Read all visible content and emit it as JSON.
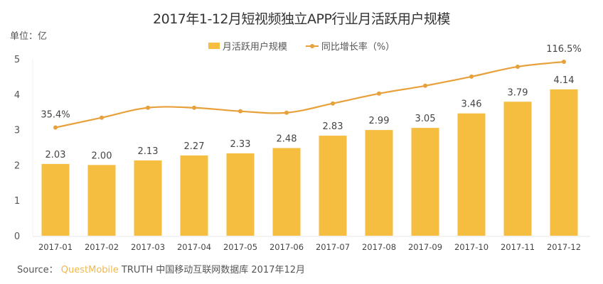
{
  "chart_data": {
    "type": "bar",
    "title": "2017年1-12月短视频独立APP行业月活跃用户规模",
    "unit_label": "单位：亿",
    "categories": [
      "2017-01",
      "2017-02",
      "2017-03",
      "2017-04",
      "2017-05",
      "2017-06",
      "2017-07",
      "2017-08",
      "2017-09",
      "2017-10",
      "2017-11",
      "2017-12"
    ],
    "series": [
      {
        "name": "月活跃用户规模",
        "type": "bar",
        "color": "#F5BE41",
        "values": [
          2.03,
          2.0,
          2.13,
          2.27,
          2.33,
          2.48,
          2.83,
          2.99,
          3.05,
          3.46,
          3.79,
          4.14
        ],
        "labels": [
          "2.03",
          "2.00",
          "2.13",
          "2.27",
          "2.33",
          "2.48",
          "2.83",
          "2.99",
          "3.05",
          "3.46",
          "3.79",
          "4.14"
        ]
      },
      {
        "name": "同比增长率（%）",
        "type": "line",
        "color": "#E8A03A",
        "axis": "secondary",
        "values": [
          35.4,
          47.6,
          59.8,
          59.8,
          55.5,
          53.7,
          65.1,
          77.3,
          86.9,
          98.2,
          110.4,
          116.5
        ],
        "labels": [
          "35.4%",
          "",
          "",
          "",
          "",
          "",
          "",
          "",
          "",
          "",
          "",
          "116.5%"
        ]
      }
    ],
    "ylim": [
      0,
      5
    ],
    "yticks": [
      "0",
      "1",
      "2",
      "3",
      "4",
      "5"
    ],
    "y2lim": [
      -98,
      120
    ],
    "y2_axis_visible": false,
    "grid": false,
    "legend_position": "top"
  },
  "source": {
    "prefix": "Source：",
    "brand": "QuestMobile",
    "rest": " TRUTH 中国移动互联网数据库 2017年12月"
  }
}
